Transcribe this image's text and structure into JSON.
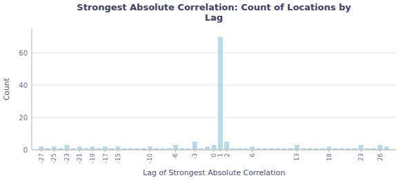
{
  "chart_data": {
    "type": "bar",
    "title": "Strongest Absolute Correlation: Count of Locations by\nLag",
    "x_label": "Lag of Strongest Absolute Correlation",
    "y_label": "Count",
    "x": [
      -27,
      -26,
      -25,
      -24,
      -23,
      -22,
      -21,
      -20,
      -19,
      -18,
      -17,
      -16,
      -15,
      -14,
      -13,
      -12,
      -11,
      -10,
      -9,
      -8,
      -7,
      -6,
      -5,
      -4,
      -3,
      -2,
      -1,
      0,
      1,
      2,
      3,
      4,
      5,
      6,
      7,
      8,
      9,
      10,
      11,
      12,
      13,
      14,
      15,
      16,
      17,
      18,
      19,
      20,
      21,
      22,
      23,
      24,
      25,
      26,
      27
    ],
    "values": [
      2,
      1,
      2,
      1,
      3,
      1,
      2,
      1,
      2,
      1,
      2,
      1,
      2,
      1,
      1,
      1,
      1,
      2,
      1,
      1,
      1,
      3,
      1,
      1,
      5,
      1,
      2,
      3,
      70,
      5,
      1,
      1,
      1,
      2,
      1,
      1,
      1,
      1,
      1,
      1,
      3,
      1,
      1,
      1,
      1,
      2,
      1,
      1,
      1,
      1,
      3,
      1,
      1,
      3,
      2
    ],
    "color": "#b8d9e8",
    "xlim": [
      -28.5,
      28.5
    ],
    "xticks": [
      -27,
      -25,
      -23,
      -21,
      -19,
      -17,
      -15,
      -10,
      -6,
      -3,
      0,
      1,
      2,
      6,
      13,
      18,
      23,
      26
    ],
    "ylim": [
      0,
      75
    ],
    "yticks": [
      0,
      20,
      40,
      60
    ],
    "grid": true
  }
}
